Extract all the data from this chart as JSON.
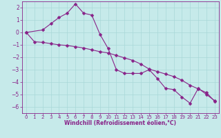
{
  "line1_x": [
    0,
    2,
    3,
    4,
    5,
    6,
    7,
    8,
    9,
    10,
    11,
    12,
    13,
    14,
    15,
    16,
    17,
    18,
    19,
    20,
    21,
    22,
    23
  ],
  "line1_y": [
    0.0,
    0.2,
    0.7,
    1.2,
    1.55,
    2.3,
    1.55,
    1.4,
    -0.15,
    -1.3,
    -3.0,
    -3.3,
    -3.3,
    -3.3,
    -3.0,
    -3.7,
    -4.5,
    -4.6,
    -5.2,
    -5.7,
    -4.5,
    -5.0,
    -5.5
  ],
  "line2_x": [
    0,
    1,
    2,
    3,
    4,
    5,
    6,
    7,
    8,
    9,
    10,
    11,
    12,
    13,
    14,
    15,
    16,
    17,
    18,
    19,
    20,
    21,
    22,
    23
  ],
  "line2_y": [
    0.0,
    -0.75,
    -0.8,
    -0.9,
    -1.0,
    -1.05,
    -1.15,
    -1.25,
    -1.4,
    -1.55,
    -1.65,
    -1.85,
    -2.05,
    -2.25,
    -2.55,
    -2.95,
    -3.15,
    -3.35,
    -3.55,
    -3.85,
    -4.25,
    -4.55,
    -4.85,
    -5.55
  ],
  "line_color": "#882288",
  "bg_color": "#c6eaea",
  "grid_color": "#a8d8d8",
  "xlabel": "Windchill (Refroidissement éolien,°C)",
  "ylim": [
    -6.5,
    2.5
  ],
  "xlim": [
    -0.5,
    23.5
  ],
  "yticks": [
    -6,
    -5,
    -4,
    -3,
    -2,
    -1,
    0,
    1,
    2
  ],
  "xticks": [
    0,
    1,
    2,
    3,
    4,
    5,
    6,
    7,
    8,
    9,
    10,
    11,
    12,
    13,
    14,
    15,
    16,
    17,
    18,
    19,
    20,
    21,
    22,
    23
  ],
  "tick_fontsize": 5.5,
  "xlabel_fontsize": 5.5,
  "linewidth": 0.8,
  "markersize": 2.5
}
